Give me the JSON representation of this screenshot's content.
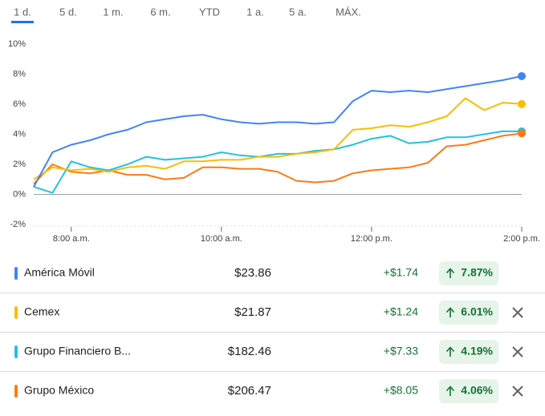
{
  "tabs": [
    "1 d.",
    "5 d.",
    "1 m.",
    "6 m.",
    "YTD",
    "1 a.",
    "5 a.",
    "MÁX."
  ],
  "chart_data": {
    "type": "line",
    "x": [
      7.5,
      7.75,
      8.0,
      8.25,
      8.5,
      8.75,
      9.0,
      9.25,
      9.5,
      9.75,
      10.0,
      10.25,
      10.5,
      10.75,
      11.0,
      11.25,
      11.5,
      11.75,
      12.0,
      12.25,
      12.5,
      12.75,
      13.0,
      13.25,
      13.5,
      13.75,
      14.0
    ],
    "series": [
      {
        "name": "América Móvil",
        "color": "#4285f4",
        "values": [
          0.5,
          2.8,
          3.3,
          3.6,
          4.0,
          4.3,
          4.8,
          5.0,
          5.2,
          5.3,
          5.0,
          4.8,
          4.7,
          4.8,
          4.8,
          4.7,
          4.8,
          6.2,
          6.9,
          6.8,
          6.9,
          6.8,
          7.0,
          7.2,
          7.4,
          7.6,
          7.87
        ]
      },
      {
        "name": "Cemex",
        "color": "#fbbc04",
        "values": [
          1.0,
          1.8,
          1.6,
          1.7,
          1.5,
          1.8,
          1.9,
          1.7,
          2.2,
          2.2,
          2.3,
          2.3,
          2.5,
          2.5,
          2.7,
          2.8,
          3.0,
          4.3,
          4.4,
          4.6,
          4.5,
          4.8,
          5.2,
          6.4,
          5.6,
          6.1,
          6.01
        ]
      },
      {
        "name": "Grupo Financiero B...",
        "color": "#24c1e0",
        "values": [
          0.5,
          0.1,
          2.2,
          1.8,
          1.6,
          2.0,
          2.5,
          2.3,
          2.4,
          2.5,
          2.8,
          2.6,
          2.5,
          2.7,
          2.7,
          2.9,
          3.0,
          3.3,
          3.7,
          3.9,
          3.4,
          3.5,
          3.8,
          3.8,
          4.0,
          4.2,
          4.19
        ]
      },
      {
        "name": "Grupo México",
        "color": "#fa7b17",
        "values": [
          0.7,
          2.0,
          1.5,
          1.4,
          1.6,
          1.3,
          1.3,
          1.0,
          1.1,
          1.8,
          1.8,
          1.7,
          1.7,
          1.5,
          0.9,
          0.8,
          0.9,
          1.4,
          1.6,
          1.7,
          1.8,
          2.1,
          3.2,
          3.3,
          3.6,
          3.9,
          4.06
        ]
      }
    ],
    "xlim": [
      7.5,
      14.0
    ],
    "xticks": [
      {
        "value": 8,
        "label": "8:00 a.m."
      },
      {
        "value": 10,
        "label": "10:00 a.m."
      },
      {
        "value": 12,
        "label": "12:00 p.m."
      },
      {
        "value": 14,
        "label": "2:00 p.m."
      }
    ],
    "ylim": [
      -2,
      10
    ],
    "yticks": [
      {
        "value": -2,
        "label": "-2%"
      },
      {
        "value": 0,
        "label": "0%"
      },
      {
        "value": 2,
        "label": "2%"
      },
      {
        "value": 4,
        "label": "4%"
      },
      {
        "value": 6,
        "label": "6%"
      },
      {
        "value": 8,
        "label": "8%"
      },
      {
        "value": 10,
        "label": "10%"
      }
    ]
  },
  "stocks": [
    {
      "price": "$23.86",
      "change": "+$1.74",
      "percent": "7.87%"
    },
    {
      "price": "$21.87",
      "change": "+$1.24",
      "percent": "6.01%"
    },
    {
      "price": "$182.46",
      "change": "+$7.33",
      "percent": "4.19%"
    },
    {
      "price": "$206.47",
      "change": "+$8.05",
      "percent": "4.06%"
    }
  ]
}
